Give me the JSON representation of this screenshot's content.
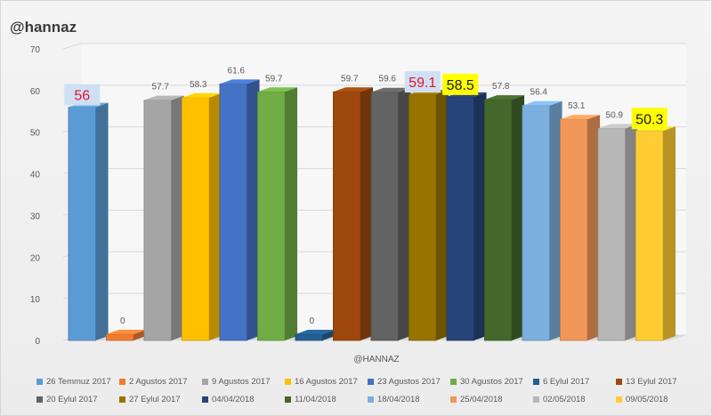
{
  "header": {
    "title": "@hannaz"
  },
  "chart_data": {
    "type": "bar",
    "title": "@hannaz",
    "xlabel": "@HANNAZ",
    "ylabel": "",
    "ylim": [
      0,
      70
    ],
    "y_ticks": [
      0,
      10,
      20,
      30,
      40,
      50,
      60,
      70
    ],
    "grid": true,
    "legend_position": "bottom",
    "categories": [
      "26 Temmuz 2017",
      "2 Agustos 2017",
      "9 Agustos 2017",
      "16 Agustos 2017",
      "23 Agustos 2017",
      "30 Agustos 2017",
      "6 Eylul 2017",
      "13 Eylul 2017",
      "20 Eylul 2017",
      "27 Eylul 2017",
      "04/04/2018",
      "11/04/2018",
      "18/04/2018",
      "25/04/2018",
      "02/05/2018",
      "09/05/2018"
    ],
    "values": [
      56,
      0,
      57.7,
      58.3,
      61.6,
      59.7,
      0,
      59.7,
      59.6,
      59.1,
      58.5,
      57.8,
      56.4,
      53.1,
      50.9,
      50.3
    ],
    "colors": [
      "#5b9bd5",
      "#ed7d31",
      "#a5a5a5",
      "#ffc000",
      "#4472c4",
      "#70ad47",
      "#255e91",
      "#9e480e",
      "#636363",
      "#997300",
      "#264478",
      "#43682b",
      "#7cafdd",
      "#f1975a",
      "#b7b7b7",
      "#ffcd33"
    ],
    "highlights": [
      {
        "index": 0,
        "text_color": "#e8112d",
        "background": "#cfe0f5"
      },
      {
        "index": 9,
        "text_color": "#e8112d",
        "background": "#cfe0f5"
      },
      {
        "index": 10,
        "text_color": "#1a1a1a",
        "background": "#ffff00"
      },
      {
        "index": 15,
        "text_color": "#1a1a1a",
        "background": "#ffff00"
      }
    ]
  }
}
